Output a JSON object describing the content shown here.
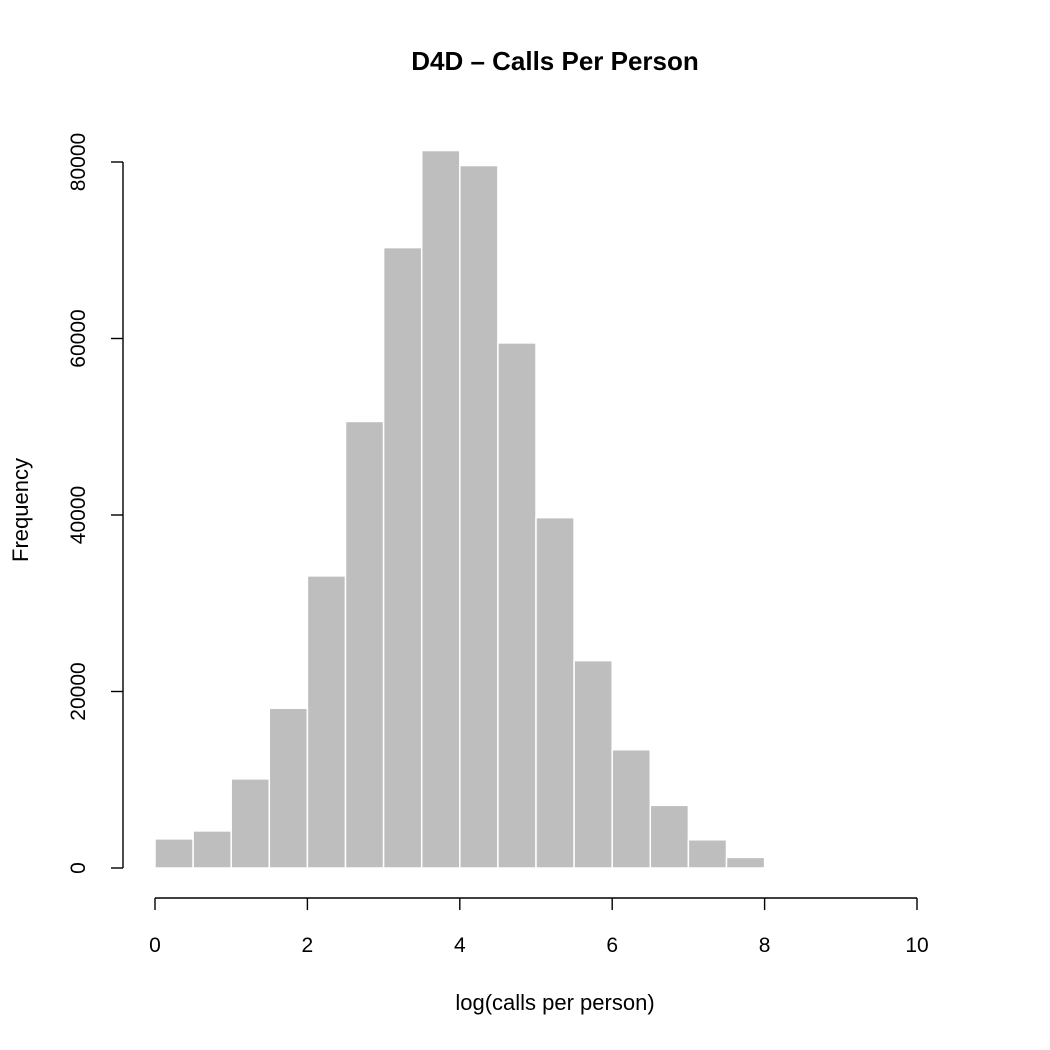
{
  "chart_data": {
    "type": "bar",
    "subtype": "histogram",
    "title": "D4D – Calls Per Person",
    "xlabel": "log(calls per person)",
    "ylabel": "Frequency",
    "xlim": [
      0,
      10
    ],
    "ylim": [
      0,
      80000
    ],
    "x_ticks": [
      0,
      2,
      4,
      6,
      8,
      10
    ],
    "y_ticks": [
      0,
      20000,
      40000,
      60000,
      80000
    ],
    "bin_width": 0.5,
    "bin_edges": [
      0,
      0.5,
      1,
      1.5,
      2,
      2.5,
      3,
      3.5,
      4,
      4.5,
      5,
      5.5,
      6,
      6.5,
      7,
      7.5,
      8,
      8.5
    ],
    "values": [
      3300,
      4200,
      10100,
      18100,
      33100,
      50600,
      70300,
      81300,
      79600,
      59500,
      39700,
      23500,
      13400,
      7100,
      3200,
      1200,
      150
    ],
    "bar_color": "#bebebe",
    "bar_border_color": "#ffffff",
    "grid": false,
    "legend": false
  }
}
